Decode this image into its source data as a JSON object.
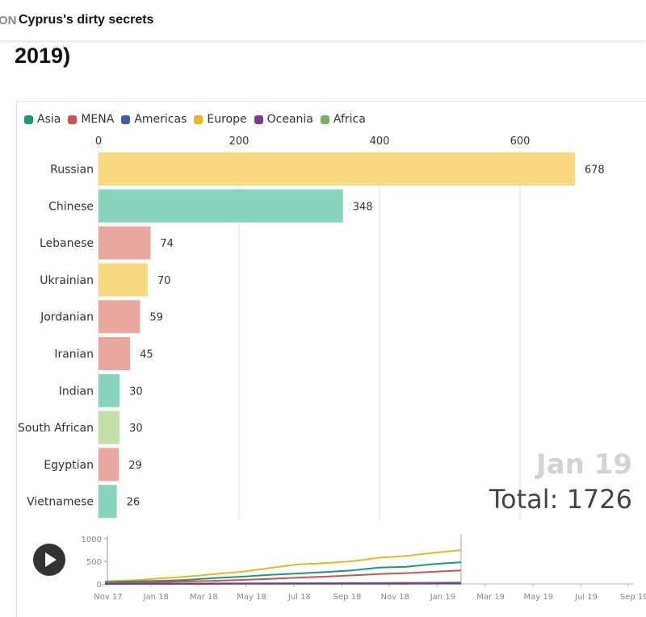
{
  "header": {
    "brand_fragment": "ON",
    "story_title": "Cyprus's dirty secrets",
    "headline_line2": "2019)"
  },
  "controls": {
    "play_icon": "play-icon"
  },
  "colors": {
    "Asia": "#1a9a7a",
    "MENA": "#c9544a",
    "Americas": "#3a5fa8",
    "Europe": "#e8b822",
    "Oceania": "#7b3a92",
    "Africa": "#79b35a"
  },
  "chart_data": [
    {
      "type": "bar",
      "orientation": "horizontal",
      "legend": [
        "Asia",
        "MENA",
        "Americas",
        "Europe",
        "Oceania",
        "Africa"
      ],
      "legend_position": "top-left",
      "x_ticks": [
        0,
        200,
        400,
        600
      ],
      "xlim": [
        0,
        750
      ],
      "grid": true,
      "bars": [
        {
          "label": "Russian",
          "value": 678,
          "region": "Europe",
          "color": "#f9d97f"
        },
        {
          "label": "Chinese",
          "value": 348,
          "region": "Asia",
          "color": "#88d4bf"
        },
        {
          "label": "Lebanese",
          "value": 74,
          "region": "MENA",
          "color": "#e8a79f"
        },
        {
          "label": "Ukrainian",
          "value": 70,
          "region": "Europe",
          "color": "#f9d97f"
        },
        {
          "label": "Jordanian",
          "value": 59,
          "region": "MENA",
          "color": "#e8a79f"
        },
        {
          "label": "Iranian",
          "value": 45,
          "region": "MENA",
          "color": "#e8a79f"
        },
        {
          "label": "Indian",
          "value": 30,
          "region": "Asia",
          "color": "#88d4bf"
        },
        {
          "label": "South African",
          "value": 30,
          "region": "Africa",
          "color": "#c3e0a9"
        },
        {
          "label": "Egyptian",
          "value": 29,
          "region": "MENA",
          "color": "#e8a79f"
        },
        {
          "label": "Vietnamese",
          "value": 26,
          "region": "Asia",
          "color": "#88d4bf"
        }
      ],
      "date_label": "Jan 19",
      "total_label": "Total: 1726"
    },
    {
      "type": "line",
      "x_tick_labels": [
        "Nov 17",
        "Jan 18",
        "Mar 18",
        "May 18",
        "Jul 18",
        "Sep 18",
        "Nov 18",
        "Jan 19",
        "Mar 19",
        "May 19",
        "Jul 19",
        "Sep 19"
      ],
      "y_ticks": [
        0,
        500,
        1000
      ],
      "ylim": [
        0,
        1000
      ],
      "current_period": "Jan 19",
      "series": [
        {
          "name": "Europe",
          "color": "#e8b822",
          "values": [
            60,
            80,
            120,
            160,
            220,
            270,
            350,
            430,
            460,
            500,
            580,
            620,
            690,
            748
          ]
        },
        {
          "name": "Asia",
          "color": "#1a9a7a",
          "values": [
            40,
            55,
            70,
            90,
            130,
            160,
            200,
            230,
            260,
            300,
            360,
            380,
            440,
            480
          ]
        },
        {
          "name": "MENA",
          "color": "#c9544a",
          "values": [
            20,
            25,
            40,
            55,
            70,
            90,
            110,
            140,
            160,
            190,
            220,
            240,
            270,
            300
          ]
        },
        {
          "name": "Africa",
          "color": "#79b35a",
          "values": [
            5,
            6,
            8,
            10,
            12,
            14,
            16,
            18,
            20,
            22,
            24,
            26,
            28,
            35
          ]
        },
        {
          "name": "Americas",
          "color": "#3a5fa8",
          "values": [
            2,
            3,
            4,
            5,
            6,
            7,
            8,
            9,
            10,
            11,
            12,
            13,
            14,
            15
          ]
        },
        {
          "name": "Oceania",
          "color": "#7b3a92",
          "values": [
            1,
            1,
            2,
            2,
            3,
            3,
            4,
            4,
            5,
            5,
            6,
            6,
            7,
            8
          ]
        }
      ]
    }
  ]
}
